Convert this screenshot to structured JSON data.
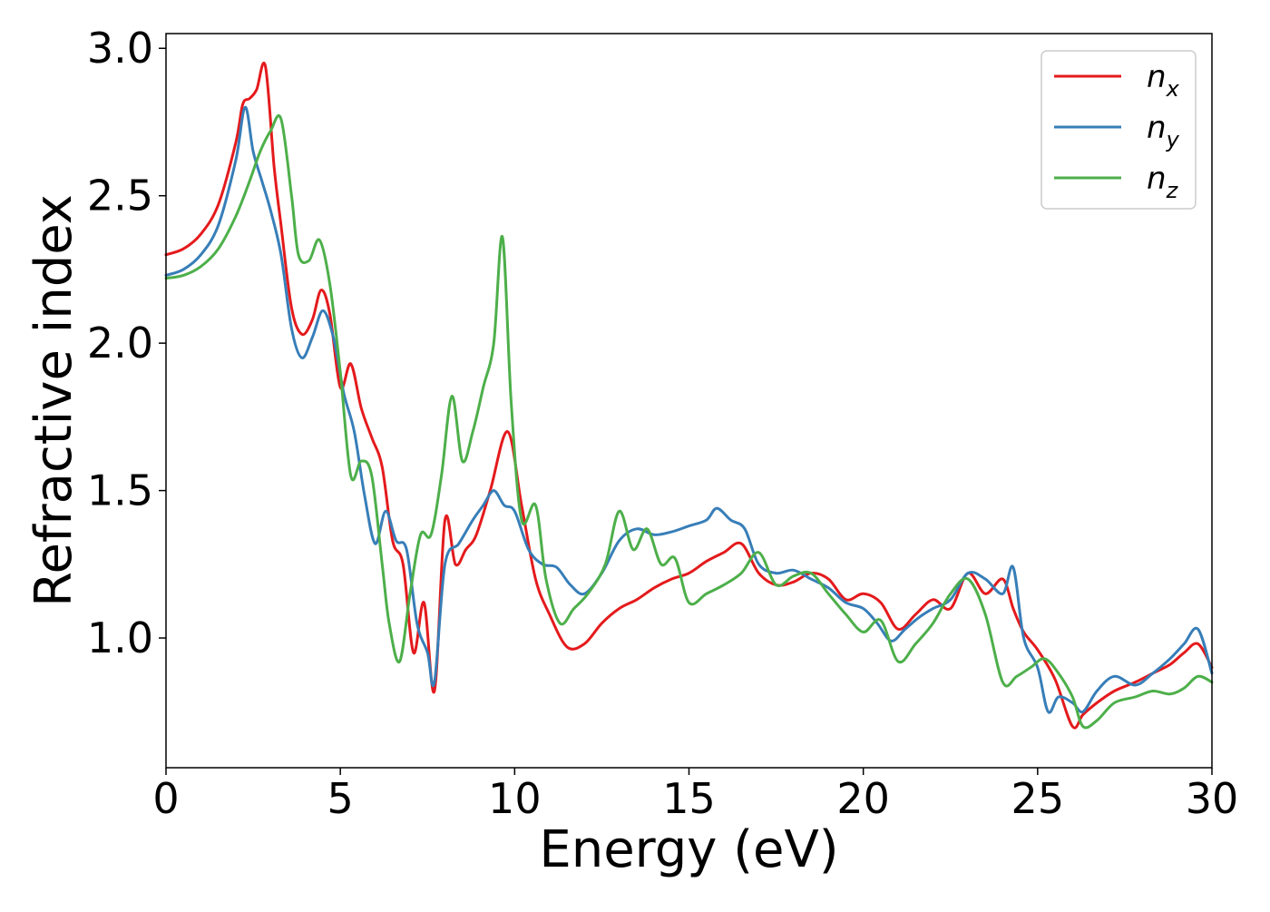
{
  "chart_data": {
    "type": "line",
    "title": "",
    "xlabel": "Energy (eV)",
    "ylabel": "Refractive index",
    "xlim": [
      0,
      30
    ],
    "ylim": [
      0.56,
      3.05
    ],
    "xticks": [
      "0",
      "5",
      "10",
      "15",
      "20",
      "25",
      "30"
    ],
    "yticks": [
      "1.0",
      "1.5",
      "2.0",
      "2.5",
      "3.0"
    ],
    "grid": false,
    "legend_position": "top-right",
    "series": [
      {
        "name": "n",
        "subscript": "x",
        "color": "#e41a1c",
        "x": [
          0,
          0.5,
          1.0,
          1.5,
          2.0,
          2.2,
          2.4,
          2.6,
          2.85,
          3.1,
          3.3,
          3.6,
          3.9,
          4.2,
          4.45,
          4.7,
          5.0,
          5.3,
          5.6,
          5.9,
          6.2,
          6.5,
          6.8,
          7.1,
          7.4,
          7.7,
          8.0,
          8.3,
          8.6,
          8.9,
          9.3,
          9.8,
          10.2,
          10.6,
          11.0,
          11.5,
          12.0,
          12.5,
          13.0,
          13.5,
          14.0,
          14.5,
          15.0,
          15.5,
          16.0,
          16.5,
          17.0,
          17.5,
          18.0,
          18.5,
          19.0,
          19.5,
          20.0,
          20.5,
          21.0,
          21.5,
          22.0,
          22.5,
          23.0,
          23.5,
          24.0,
          24.3,
          24.6,
          25.0,
          25.5,
          26.0,
          26.3,
          26.7,
          27.2,
          27.8,
          28.3,
          28.8,
          29.2,
          29.6,
          30.0
        ],
        "y": [
          2.3,
          2.32,
          2.37,
          2.47,
          2.68,
          2.81,
          2.83,
          2.86,
          2.94,
          2.6,
          2.4,
          2.12,
          2.03,
          2.08,
          2.18,
          2.1,
          1.85,
          1.93,
          1.78,
          1.68,
          1.58,
          1.33,
          1.25,
          0.95,
          1.12,
          0.82,
          1.4,
          1.25,
          1.3,
          1.35,
          1.5,
          1.7,
          1.45,
          1.2,
          1.08,
          0.97,
          0.98,
          1.05,
          1.1,
          1.13,
          1.17,
          1.2,
          1.22,
          1.26,
          1.29,
          1.32,
          1.22,
          1.18,
          1.19,
          1.22,
          1.2,
          1.13,
          1.15,
          1.12,
          1.03,
          1.08,
          1.13,
          1.1,
          1.22,
          1.15,
          1.2,
          1.1,
          1.02,
          0.96,
          0.86,
          0.7,
          0.74,
          0.78,
          0.82,
          0.85,
          0.88,
          0.91,
          0.95,
          0.98,
          0.9
        ]
      },
      {
        "name": "n",
        "subscript": "y",
        "color": "#377eb8",
        "x": [
          0,
          0.5,
          1.0,
          1.5,
          2.0,
          2.27,
          2.5,
          2.75,
          3.0,
          3.3,
          3.6,
          3.9,
          4.2,
          4.5,
          4.8,
          5.1,
          5.4,
          5.7,
          6.0,
          6.3,
          6.6,
          6.9,
          7.2,
          7.5,
          7.7,
          8.0,
          8.4,
          8.8,
          9.1,
          9.4,
          9.7,
          10.0,
          10.4,
          10.8,
          11.2,
          11.6,
          12.0,
          12.5,
          13.0,
          13.5,
          14.0,
          14.5,
          15.0,
          15.5,
          15.8,
          16.2,
          16.6,
          17.0,
          17.5,
          18.0,
          18.5,
          19.0,
          19.5,
          20.0,
          20.4,
          20.8,
          21.2,
          21.6,
          22.0,
          22.5,
          23.0,
          23.5,
          24.0,
          24.3,
          24.6,
          25.0,
          25.3,
          25.6,
          26.0,
          26.3,
          26.7,
          27.2,
          27.8,
          28.3,
          28.8,
          29.2,
          29.6,
          30.0
        ],
        "y": [
          2.23,
          2.25,
          2.3,
          2.4,
          2.62,
          2.8,
          2.65,
          2.55,
          2.45,
          2.3,
          2.05,
          1.95,
          2.02,
          2.11,
          2.02,
          1.83,
          1.7,
          1.48,
          1.32,
          1.43,
          1.33,
          1.3,
          1.05,
          0.95,
          0.85,
          1.25,
          1.32,
          1.4,
          1.45,
          1.5,
          1.45,
          1.43,
          1.3,
          1.25,
          1.24,
          1.18,
          1.15,
          1.22,
          1.33,
          1.37,
          1.35,
          1.36,
          1.38,
          1.4,
          1.44,
          1.4,
          1.37,
          1.25,
          1.22,
          1.23,
          1.2,
          1.17,
          1.12,
          1.1,
          1.05,
          0.99,
          1.03,
          1.07,
          1.1,
          1.13,
          1.22,
          1.2,
          1.15,
          1.24,
          1.0,
          0.9,
          0.75,
          0.8,
          0.78,
          0.75,
          0.82,
          0.87,
          0.84,
          0.88,
          0.93,
          0.98,
          1.03,
          0.88
        ]
      },
      {
        "name": "n",
        "subscript": "z",
        "color": "#4daf4a",
        "x": [
          0,
          0.5,
          1.0,
          1.5,
          2.0,
          2.4,
          2.7,
          3.0,
          3.3,
          3.6,
          3.8,
          4.1,
          4.4,
          4.7,
          5.0,
          5.3,
          5.6,
          5.9,
          6.2,
          6.4,
          6.7,
          7.0,
          7.3,
          7.6,
          7.9,
          8.2,
          8.5,
          8.8,
          9.1,
          9.4,
          9.65,
          9.9,
          10.2,
          10.6,
          10.9,
          11.3,
          11.7,
          12.1,
          12.6,
          13.0,
          13.4,
          13.8,
          14.2,
          14.6,
          15.0,
          15.5,
          16.0,
          16.5,
          17.0,
          17.5,
          18.0,
          18.5,
          19.0,
          19.5,
          20.0,
          20.5,
          21.0,
          21.5,
          22.0,
          22.5,
          23.0,
          23.5,
          24.0,
          24.4,
          24.8,
          25.2,
          25.6,
          26.0,
          26.3,
          26.7,
          27.2,
          27.8,
          28.3,
          28.8,
          29.2,
          29.6,
          30.0
        ],
        "y": [
          2.22,
          2.23,
          2.26,
          2.32,
          2.43,
          2.55,
          2.65,
          2.72,
          2.76,
          2.5,
          2.3,
          2.28,
          2.35,
          2.2,
          1.9,
          1.55,
          1.6,
          1.55,
          1.25,
          1.05,
          0.92,
          1.15,
          1.35,
          1.35,
          1.55,
          1.82,
          1.6,
          1.7,
          1.85,
          2.0,
          2.36,
          1.8,
          1.4,
          1.45,
          1.2,
          1.05,
          1.1,
          1.15,
          1.25,
          1.43,
          1.3,
          1.37,
          1.25,
          1.27,
          1.12,
          1.15,
          1.18,
          1.22,
          1.29,
          1.18,
          1.21,
          1.22,
          1.15,
          1.08,
          1.02,
          1.06,
          0.92,
          0.98,
          1.05,
          1.15,
          1.2,
          1.08,
          0.85,
          0.87,
          0.9,
          0.93,
          0.88,
          0.8,
          0.7,
          0.72,
          0.78,
          0.8,
          0.82,
          0.81,
          0.83,
          0.87,
          0.85
        ]
      }
    ]
  }
}
